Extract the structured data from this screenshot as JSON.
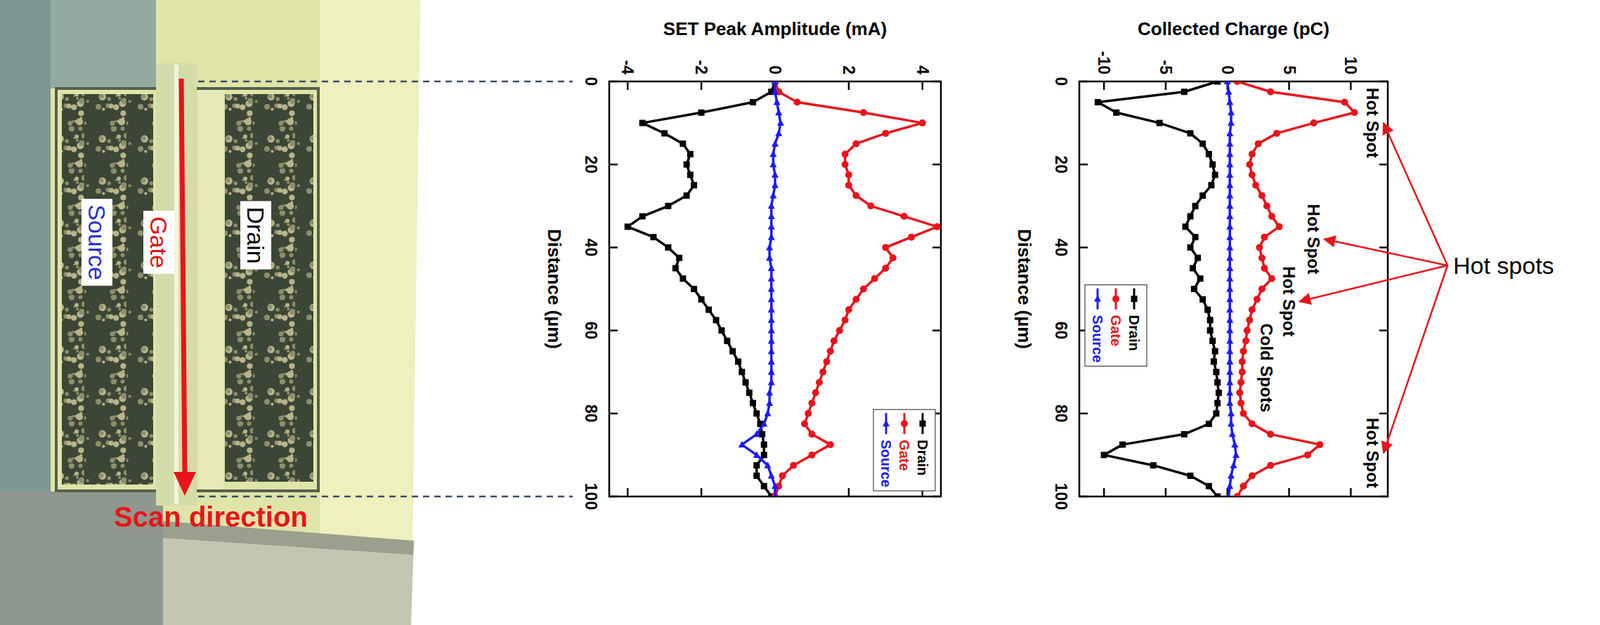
{
  "micrograph": {
    "labels": [
      "Source",
      "Gate",
      "Drain"
    ],
    "scan_label": "Scan direction"
  },
  "chart_data": [
    {
      "type": "line",
      "y_label": "SET Peak Amplitude (mA)",
      "x_label": "Distance (µm)",
      "x": [
        0,
        2.5,
        5,
        7.5,
        10,
        12.5,
        15,
        17.5,
        20,
        22.5,
        25,
        27.5,
        30,
        32.5,
        35,
        37.5,
        40,
        42.5,
        45,
        47.5,
        50,
        52.5,
        55,
        57.5,
        60,
        62.5,
        65,
        67.5,
        70,
        72.5,
        75,
        77.5,
        80,
        82.5,
        85,
        87.5,
        90,
        92.5,
        95,
        97.5,
        100
      ],
      "series": [
        {
          "name": "Drain",
          "color": "#000000",
          "marker": "square",
          "values": [
            0,
            -0.1,
            -0.6,
            -2.0,
            -3.6,
            -3.0,
            -2.5,
            -2.3,
            -2.4,
            -2.3,
            -2.2,
            -2.4,
            -2.9,
            -3.6,
            -4.0,
            -3.3,
            -2.9,
            -2.6,
            -2.7,
            -2.5,
            -2.2,
            -2.0,
            -1.8,
            -1.6,
            -1.45,
            -1.3,
            -1.15,
            -1.0,
            -0.9,
            -0.8,
            -0.7,
            -0.6,
            -0.5,
            -0.4,
            -0.35,
            -0.3,
            -0.3,
            -0.5,
            -0.5,
            -0.3,
            -0.1
          ]
        },
        {
          "name": "Gate",
          "color": "#e8141a",
          "marker": "circle",
          "values": [
            0,
            0.1,
            0.6,
            2.4,
            4.0,
            3.0,
            2.2,
            1.9,
            1.9,
            2.0,
            2.0,
            2.2,
            2.6,
            3.5,
            4.4,
            3.7,
            3.0,
            3.2,
            3.0,
            2.7,
            2.4,
            2.2,
            2.0,
            1.9,
            1.75,
            1.6,
            1.5,
            1.4,
            1.3,
            1.2,
            1.1,
            1.0,
            0.9,
            0.8,
            1.0,
            1.5,
            1.0,
            0.5,
            0.2,
            0.1,
            0
          ]
        },
        {
          "name": "Source",
          "color": "#1a1aff",
          "marker": "triangle",
          "values": [
            0,
            0,
            0.05,
            0.1,
            0.15,
            0.1,
            0,
            -0.05,
            -0.05,
            0,
            0,
            -0.05,
            -0.1,
            -0.1,
            -0.1,
            -0.1,
            -0.15,
            -0.15,
            -0.1,
            -0.1,
            -0.1,
            -0.1,
            -0.1,
            -0.1,
            -0.1,
            -0.1,
            -0.1,
            -0.1,
            -0.1,
            -0.1,
            -0.15,
            -0.15,
            -0.2,
            -0.3,
            -0.5,
            -0.9,
            -0.5,
            -0.2,
            -0.1,
            0,
            0
          ]
        }
      ],
      "xlim": [
        0,
        100
      ],
      "xticks": [
        0,
        20,
        40,
        60,
        80,
        100
      ],
      "ylim": [
        -4.5,
        4.5
      ],
      "yticks": [
        -4,
        -2,
        0,
        2,
        4
      ],
      "legend": "lower right"
    },
    {
      "type": "line",
      "y_label": "Collected Charge (pC)",
      "x_label": "Distance (µm)",
      "x": [
        0,
        2.5,
        5,
        7.5,
        10,
        12.5,
        15,
        17.5,
        20,
        22.5,
        25,
        27.5,
        30,
        32.5,
        35,
        37.5,
        40,
        42.5,
        45,
        47.5,
        50,
        52.5,
        55,
        57.5,
        60,
        62.5,
        65,
        67.5,
        70,
        72.5,
        75,
        77.5,
        80,
        82.5,
        85,
        87.5,
        90,
        92.5,
        95,
        97.5,
        100
      ],
      "series": [
        {
          "name": "Drain",
          "color": "#000000",
          "marker": "square",
          "values": [
            -0.8,
            -3.5,
            -10.5,
            -9.0,
            -5.5,
            -3.0,
            -2.0,
            -1.5,
            -1.2,
            -1.0,
            -1.3,
            -2.0,
            -2.6,
            -3.0,
            -3.4,
            -2.6,
            -3.0,
            -2.4,
            -2.8,
            -2.2,
            -2.7,
            -2.0,
            -1.6,
            -1.4,
            -1.4,
            -1.2,
            -1.0,
            -1.1,
            -0.9,
            -0.8,
            -0.7,
            -0.8,
            -0.9,
            -1.5,
            -3.5,
            -8.5,
            -10.0,
            -6.0,
            -3.0,
            -1.5,
            -0.8
          ]
        },
        {
          "name": "Gate",
          "color": "#e8141a",
          "marker": "circle",
          "values": [
            0.8,
            3.5,
            9.5,
            10.3,
            7.0,
            4.0,
            2.5,
            2.0,
            1.8,
            2.0,
            2.3,
            2.8,
            3.2,
            3.6,
            4.2,
            3.0,
            2.6,
            2.8,
            3.0,
            3.6,
            2.8,
            2.4,
            2.0,
            1.8,
            1.6,
            1.5,
            1.3,
            1.2,
            1.2,
            1.1,
            1.0,
            1.1,
            1.3,
            2.0,
            3.5,
            7.5,
            6.5,
            3.5,
            2.0,
            1.3,
            0.8
          ]
        },
        {
          "name": "Source",
          "color": "#1a1aff",
          "marker": "triangle",
          "values": [
            0,
            0.1,
            0.2,
            0.3,
            0.3,
            0.2,
            0.2,
            0.2,
            0.2,
            0.2,
            0.2,
            0.2,
            0.2,
            0.2,
            0.2,
            0.2,
            0.2,
            0.2,
            0.2,
            0.2,
            0.2,
            0.2,
            0.2,
            0.2,
            0.2,
            0.2,
            0.2,
            0.2,
            0.2,
            0.2,
            0.2,
            0.2,
            0.3,
            0.3,
            0.4,
            0.6,
            0.7,
            0.5,
            0.3,
            0.2,
            0.1
          ]
        }
      ],
      "xlim": [
        0,
        100
      ],
      "xticks": [
        0,
        20,
        40,
        60,
        80,
        100
      ],
      "ylim": [
        -12,
        13
      ],
      "yticks": [
        -10,
        -5,
        0,
        5,
        10
      ],
      "legend": "left",
      "annotations": [
        {
          "text": "Hot Spot",
          "x": 10,
          "y": 11.8
        },
        {
          "text": "Hot Spot",
          "x": 38,
          "y": 7.0
        },
        {
          "text": "Hot Spot",
          "x": 53,
          "y": 5.0
        },
        {
          "text": "Cold Spots",
          "x": 69,
          "y": 3.2
        },
        {
          "text": "Hot Spot",
          "x": 89.5,
          "y": 11.8
        }
      ],
      "callout": {
        "text": "Hot spots",
        "targets": [
          0,
          1,
          2,
          4
        ]
      }
    }
  ]
}
